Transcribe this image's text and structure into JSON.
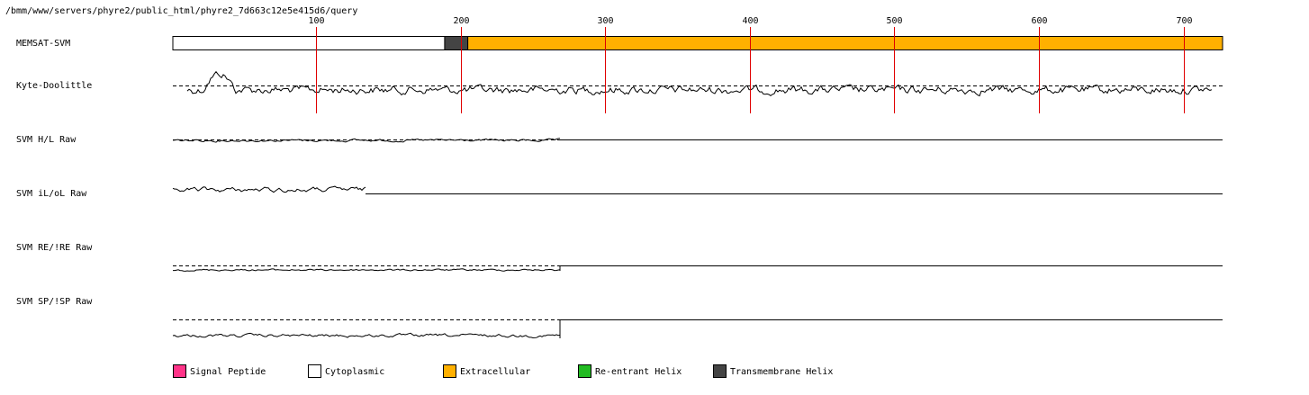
{
  "header": {
    "path": "/bmm/www/servers/phyre2/public_html/phyre2_7d663c12e5e415d6/query"
  },
  "chart_data": {
    "type": "line",
    "x_ticks": [
      100,
      200,
      300,
      400,
      500,
      600,
      700
    ],
    "x_range": [
      1,
      727
    ],
    "tracks": [
      {
        "name": "MEMSAT-SVM",
        "segments": [
          {
            "start": 1,
            "end": 189,
            "class": "Cytoplasmic"
          },
          {
            "start": 189,
            "end": 205,
            "class": "Transmembrane Helix"
          },
          {
            "start": 205,
            "end": 727,
            "class": "Extracellular"
          }
        ]
      },
      {
        "name": "Kyte-Doolittle"
      },
      {
        "name": "SVM H/L Raw"
      },
      {
        "name": "SVM iL/oL Raw"
      },
      {
        "name": "SVM RE/!RE Raw"
      },
      {
        "name": "SVM SP/!SP Raw"
      }
    ],
    "legend": [
      {
        "label": "Signal Peptide",
        "color": "#ff3388"
      },
      {
        "label": "Cytoplasmic",
        "color": "#ffffff"
      },
      {
        "label": "Extracellular",
        "color": "#ffb000"
      },
      {
        "label": "Re-entrant Helix",
        "color": "#22bb22"
      },
      {
        "label": "Transmembrane Helix",
        "color": "#444444"
      }
    ]
  }
}
